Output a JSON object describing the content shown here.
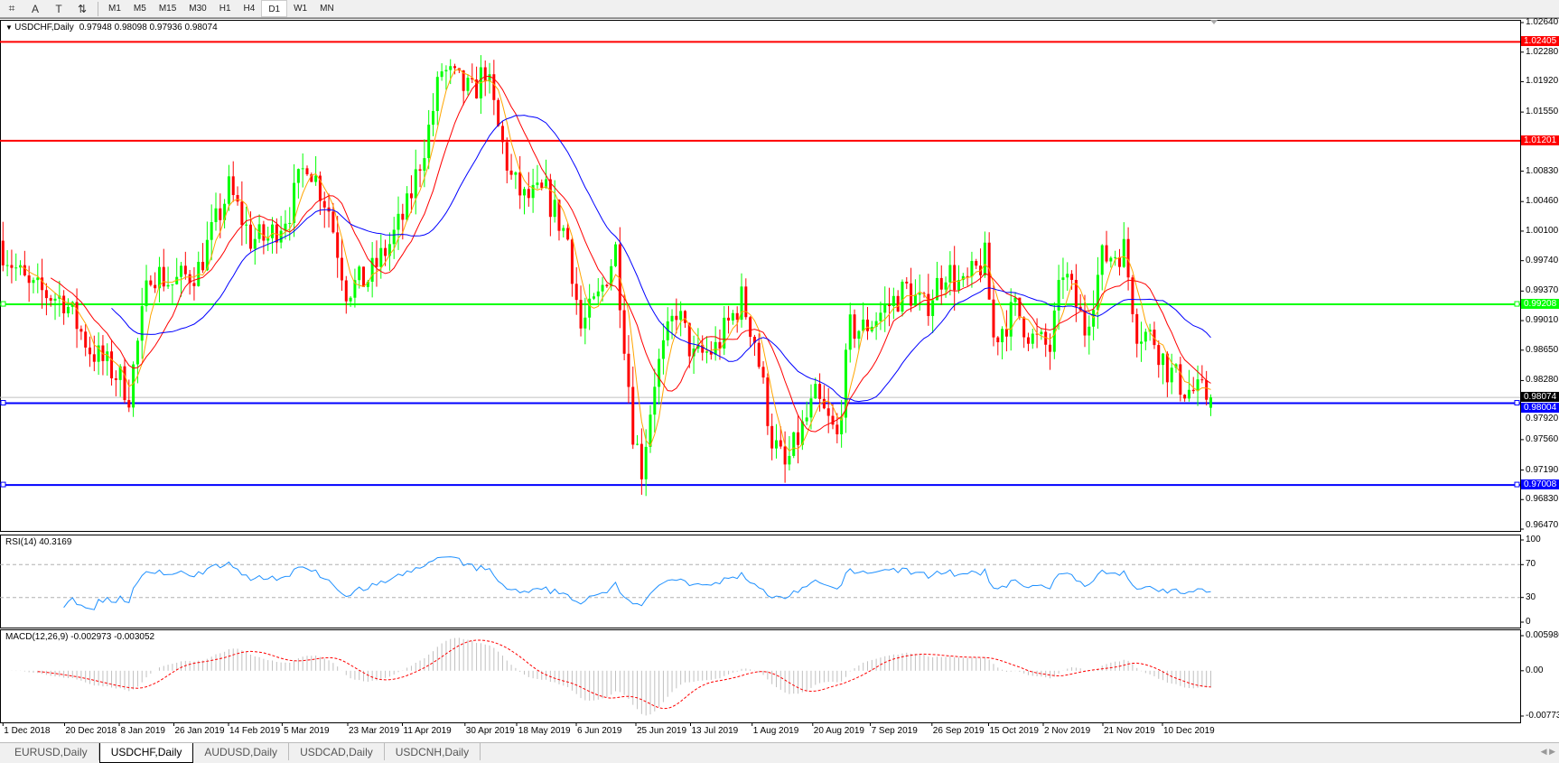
{
  "toolbar": {
    "icons": [
      "crosshair-icon",
      "text-icon",
      "text-label-icon",
      "arrows-icon"
    ],
    "icon_glyphs": [
      "⌗",
      "A",
      "T",
      "⇅"
    ],
    "timeframes": [
      "M1",
      "M5",
      "M15",
      "M30",
      "H1",
      "H4",
      "D1",
      "W1",
      "MN"
    ],
    "active_timeframe": "D1"
  },
  "chart": {
    "title": "USDCHF,Daily",
    "ohlc": "0.97948 0.98098 0.97936 0.98074"
  },
  "price_axis": {
    "ticks": [
      "1.02640",
      "1.02280",
      "1.01920",
      "1.01550",
      "1.00830",
      "1.00460",
      "1.00100",
      "0.99740",
      "0.99370",
      "0.99010",
      "0.98650",
      "0.98280",
      "0.97920",
      "0.97560",
      "0.97190",
      "0.96830",
      "0.96470"
    ]
  },
  "levels": [
    {
      "price": "1.02405",
      "color": "#ff0000"
    },
    {
      "price": "1.01201",
      "color": "#ff0000"
    },
    {
      "price": "0.99208",
      "color": "#00ff00"
    },
    {
      "price": "0.98004",
      "color": "#0000ff"
    },
    {
      "price": "0.97008",
      "color": "#0000ff"
    }
  ],
  "bid_label": "0.98074",
  "rsi": {
    "label": "RSI(14) 40.3169",
    "ticks": [
      "100",
      "70",
      "30",
      "0"
    ]
  },
  "macd": {
    "label": "MACD(12,26,9) -0.002973 -0.003052",
    "ticks": [
      "0.005986",
      "0.00",
      "-0.007737"
    ]
  },
  "date_axis": [
    "1 Dec 2018",
    "20 Dec 2018",
    "8 Jan 2019",
    "26 Jan 2019",
    "14 Feb 2019",
    "5 Mar 2019",
    "23 Mar 2019",
    "11 Apr 2019",
    "30 Apr 2019",
    "18 May 2019",
    "6 Jun 2019",
    "25 Jun 2019",
    "13 Jul 2019",
    "1 Aug 2019",
    "20 Aug 2019",
    "7 Sep 2019",
    "26 Sep 2019",
    "15 Oct 2019",
    "2 Nov 2019",
    "21 Nov 2019",
    "10 Dec 2019"
  ],
  "tabs": [
    {
      "label": "EURUSD,Daily"
    },
    {
      "label": "USDCHF,Daily",
      "active": true
    },
    {
      "label": "AUDUSD,Daily"
    },
    {
      "label": "USDCAD,Daily"
    },
    {
      "label": "USDCNH,Daily"
    }
  ],
  "colors": {
    "bull": "#00ff00",
    "bear": "#ff0000",
    "ma_fast": "#ffa500",
    "ma_mid": "#ff0000",
    "ma_slow": "#0000ff",
    "rsi": "#1e90ff",
    "macd_hist": "#c0c0c0",
    "macd_signal": "#ff0000"
  },
  "chart_data": {
    "type": "candlestick",
    "symbol": "USDCHF",
    "timeframe": "Daily",
    "approx_close_path": [
      [
        "2018-12-03",
        0.99883
      ],
      [
        "2018-12-11",
        0.99396
      ],
      [
        "2018-12-21",
        0.99275
      ],
      [
        "2018-12-31",
        0.98667
      ],
      [
        "2019-01-09",
        0.98302
      ],
      [
        "2019-01-11",
        0.9812
      ],
      [
        "2019-01-18",
        0.9964
      ],
      [
        "2019-01-25",
        0.99457
      ],
      [
        "2019-02-04",
        0.9964
      ],
      [
        "2019-02-13",
        1.00612
      ],
      [
        "2019-02-20",
        1.00005
      ],
      [
        "2019-02-26",
        1.00005
      ],
      [
        "2019-03-05",
        1.00369
      ],
      [
        "2019-03-11",
        1.00977
      ],
      [
        "2019-03-18",
        1.00369
      ],
      [
        "2019-03-22",
        0.99396
      ],
      [
        "2019-03-29",
        0.99518
      ],
      [
        "2019-04-05",
        0.99944
      ],
      [
        "2019-04-11",
        1.00369
      ],
      [
        "2019-04-18",
        1.01342
      ],
      [
        "2019-04-23",
        1.02072
      ],
      [
        "2019-04-29",
        1.01889
      ],
      [
        "2019-05-02",
        1.01768
      ],
      [
        "2019-05-07",
        1.02072
      ],
      [
        "2019-05-10",
        1.01342
      ],
      [
        "2019-05-15",
        1.00734
      ],
      [
        "2019-05-20",
        1.00491
      ],
      [
        "2019-05-27",
        1.00552
      ],
      [
        "2019-06-03",
        1.00005
      ],
      [
        "2019-06-06",
        0.9891
      ],
      [
        "2019-06-12",
        0.99275
      ],
      [
        "2019-06-18",
        0.99883
      ],
      [
        "2019-06-24",
        0.97694
      ],
      [
        "2019-06-26",
        0.97208
      ],
      [
        "2019-07-01",
        0.98302
      ],
      [
        "2019-07-08",
        0.99153
      ],
      [
        "2019-07-12",
        0.98545
      ],
      [
        "2019-07-19",
        0.98667
      ],
      [
        "2019-07-29",
        0.99275
      ],
      [
        "2019-08-01",
        0.98789
      ],
      [
        "2019-08-07",
        0.97573
      ],
      [
        "2019-08-12",
        0.97208
      ],
      [
        "2019-08-16",
        0.97694
      ],
      [
        "2019-08-21",
        0.98059
      ],
      [
        "2019-08-28",
        0.97573
      ],
      [
        "2019-09-02",
        0.9891
      ],
      [
        "2019-09-05",
        0.9891
      ],
      [
        "2019-09-12",
        0.99153
      ],
      [
        "2019-09-19",
        0.99396
      ],
      [
        "2019-09-25",
        0.99153
      ],
      [
        "2019-10-02",
        0.9964
      ],
      [
        "2019-10-08",
        0.99396
      ],
      [
        "2019-10-15",
        0.99761
      ],
      [
        "2019-10-17",
        0.98789
      ],
      [
        "2019-10-24",
        0.99153
      ],
      [
        "2019-10-30",
        0.98789
      ],
      [
        "2019-11-05",
        0.98667
      ],
      [
        "2019-11-08",
        0.9964
      ],
      [
        "2019-11-15",
        0.9891
      ],
      [
        "2019-11-21",
        0.99761
      ],
      [
        "2019-11-28",
        0.99883
      ],
      [
        "2019-12-03",
        0.9891
      ],
      [
        "2019-12-09",
        0.98789
      ],
      [
        "2019-12-12",
        0.98424
      ],
      [
        "2019-12-18",
        0.9818
      ],
      [
        "2019-12-26",
        0.98074
      ]
    ],
    "ylim": [
      0.9647,
      1.0264
    ],
    "rsi_levels": [
      30,
      70
    ],
    "macd_range": [
      -0.007737,
      0.005986
    ]
  }
}
